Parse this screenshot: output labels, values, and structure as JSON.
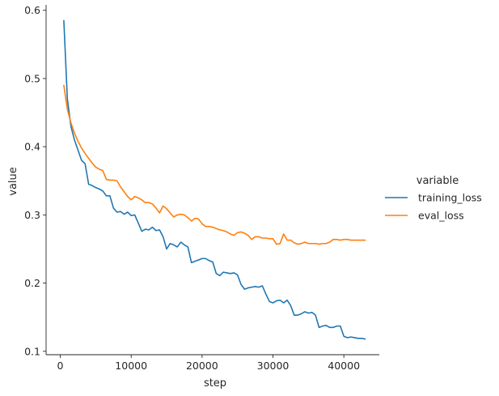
{
  "chart_data": {
    "type": "line",
    "xlabel": "step",
    "ylabel": "value",
    "xlim": [
      -2000,
      45000
    ],
    "ylim": [
      0.095,
      0.608
    ],
    "xticks": [
      0,
      10000,
      20000,
      30000,
      40000
    ],
    "xtick_labels": [
      "0",
      "10000",
      "20000",
      "30000",
      "40000"
    ],
    "yticks": [
      0.1,
      0.2,
      0.3,
      0.4,
      0.5,
      0.6
    ],
    "ytick_labels": [
      "0.1",
      "0.2",
      "0.3",
      "0.4",
      "0.5",
      "0.6"
    ],
    "grid": false,
    "legend": {
      "title": "variable",
      "position": "right",
      "entries": [
        "training_loss",
        "eval_loss"
      ]
    },
    "series": [
      {
        "name": "training_loss",
        "color": "#1f77b4",
        "x": [
          500,
          1000,
          1500,
          2000,
          2500,
          3000,
          3500,
          4000,
          4500,
          5000,
          5500,
          6000,
          6500,
          7000,
          7500,
          8000,
          8500,
          9000,
          9500,
          10000,
          10500,
          11000,
          11500,
          12000,
          12500,
          13000,
          13500,
          14000,
          14500,
          15000,
          15500,
          16000,
          16500,
          17000,
          17500,
          18000,
          18500,
          19000,
          19500,
          20000,
          20500,
          21000,
          21500,
          22000,
          22500,
          23000,
          23500,
          24000,
          24500,
          25000,
          25500,
          26000,
          26500,
          27000,
          27500,
          28000,
          28500,
          29000,
          29500,
          30000,
          30500,
          31000,
          31500,
          32000,
          32500,
          33000,
          33500,
          34000,
          34500,
          35000,
          35500,
          36000,
          36500,
          37000,
          37500,
          38000,
          38500,
          39000,
          39500,
          40000,
          40500,
          41000,
          41500,
          42000,
          42500,
          43000
        ],
        "values": [
          0.585,
          0.47,
          0.43,
          0.41,
          0.395,
          0.38,
          0.375,
          0.345,
          0.343,
          0.34,
          0.338,
          0.335,
          0.328,
          0.328,
          0.31,
          0.304,
          0.305,
          0.301,
          0.304,
          0.299,
          0.3,
          0.288,
          0.276,
          0.279,
          0.278,
          0.282,
          0.277,
          0.278,
          0.268,
          0.25,
          0.258,
          0.256,
          0.253,
          0.26,
          0.256,
          0.253,
          0.23,
          0.232,
          0.234,
          0.236,
          0.236,
          0.233,
          0.231,
          0.214,
          0.211,
          0.216,
          0.215,
          0.214,
          0.215,
          0.212,
          0.198,
          0.191,
          0.193,
          0.194,
          0.195,
          0.194,
          0.196,
          0.184,
          0.173,
          0.171,
          0.174,
          0.175,
          0.171,
          0.175,
          0.167,
          0.153,
          0.153,
          0.155,
          0.158,
          0.156,
          0.157,
          0.153,
          0.135,
          0.137,
          0.138,
          0.135,
          0.135,
          0.137,
          0.137,
          0.122,
          0.12,
          0.121,
          0.12,
          0.119,
          0.119,
          0.118
        ]
      },
      {
        "name": "eval_loss",
        "color": "#ff7f0e",
        "x": [
          500,
          1000,
          1500,
          2000,
          2500,
          3000,
          3500,
          4000,
          4500,
          5000,
          5500,
          6000,
          6500,
          7000,
          7500,
          8000,
          8500,
          9000,
          9500,
          10000,
          10500,
          11000,
          11500,
          12000,
          12500,
          13000,
          13500,
          14000,
          14500,
          15000,
          15500,
          16000,
          16500,
          17000,
          17500,
          18000,
          18500,
          19000,
          19500,
          20000,
          20500,
          21000,
          21500,
          22000,
          22500,
          23000,
          23500,
          24000,
          24500,
          25000,
          25500,
          26000,
          26500,
          27000,
          27500,
          28000,
          28500,
          29000,
          29500,
          30000,
          30500,
          31000,
          31500,
          32000,
          32500,
          33000,
          33500,
          34000,
          34500,
          35000,
          35500,
          36000,
          36500,
          37000,
          37500,
          38000,
          38500,
          39000,
          39500,
          40000,
          40500,
          41000,
          41500,
          42000,
          42500,
          43000
        ],
        "values": [
          0.49,
          0.455,
          0.435,
          0.42,
          0.408,
          0.398,
          0.39,
          0.383,
          0.376,
          0.37,
          0.367,
          0.365,
          0.352,
          0.351,
          0.351,
          0.35,
          0.341,
          0.334,
          0.327,
          0.322,
          0.327,
          0.325,
          0.322,
          0.318,
          0.318,
          0.316,
          0.31,
          0.303,
          0.313,
          0.309,
          0.303,
          0.297,
          0.3,
          0.301,
          0.3,
          0.296,
          0.291,
          0.295,
          0.294,
          0.287,
          0.283,
          0.283,
          0.282,
          0.28,
          0.278,
          0.277,
          0.275,
          0.272,
          0.27,
          0.274,
          0.275,
          0.273,
          0.27,
          0.264,
          0.268,
          0.268,
          0.266,
          0.266,
          0.265,
          0.265,
          0.257,
          0.258,
          0.272,
          0.263,
          0.263,
          0.259,
          0.257,
          0.258,
          0.26,
          0.258,
          0.258,
          0.258,
          0.257,
          0.258,
          0.258,
          0.26,
          0.264,
          0.264,
          0.263,
          0.264,
          0.264,
          0.263,
          0.263,
          0.263,
          0.263,
          0.263
        ]
      }
    ]
  }
}
